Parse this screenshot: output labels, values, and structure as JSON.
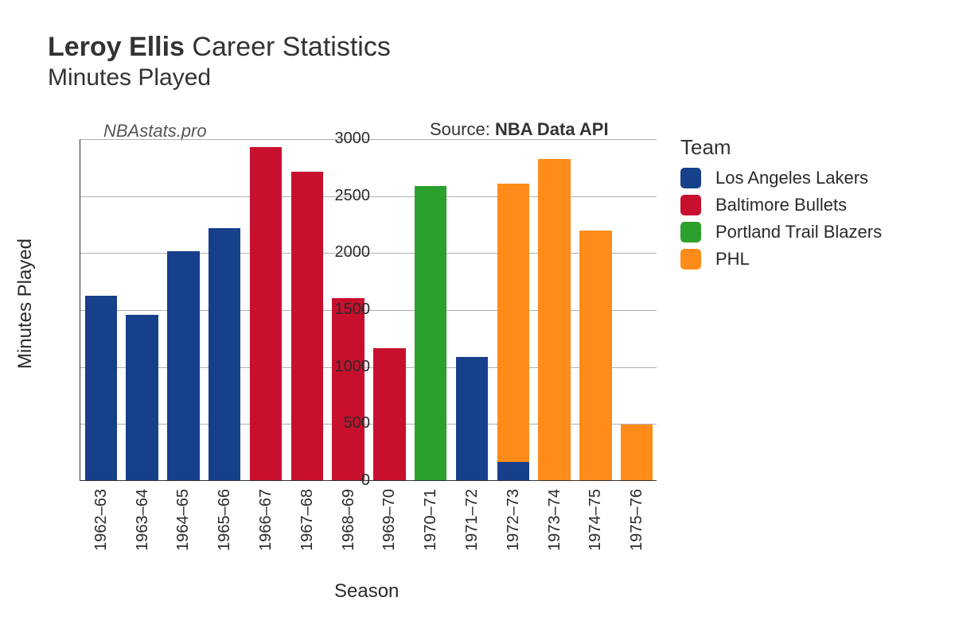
{
  "title": {
    "player": "Leroy Ellis",
    "rest": " Career Statistics",
    "subtitle": "Minutes Played"
  },
  "annotations": {
    "site": "NBAstats.pro",
    "source_prefix": "Source: ",
    "source_bold": "NBA Data API"
  },
  "axes": {
    "x_title": "Season",
    "y_title": "Minutes Played"
  },
  "chart": {
    "type": "stacked-bar",
    "ylim": [
      0,
      3000
    ],
    "ytick_step": 500,
    "yticks": [
      0,
      500,
      1000,
      1500,
      2000,
      2500,
      3000
    ],
    "categories": [
      "1962–63",
      "1963–64",
      "1964–65",
      "1965–66",
      "1966–67",
      "1967–68",
      "1968–69",
      "1969–70",
      "1970–71",
      "1971–72",
      "1972–73",
      "1973–74",
      "1974–75",
      "1975–76"
    ],
    "bar_width_ratio": 0.78,
    "background_color": "#ffffff",
    "grid_color": "#b0b0b0",
    "axis_color": "#333333",
    "label_fontsize": 20,
    "title_fontsize": 34,
    "axis_title_fontsize": 24,
    "bars": [
      {
        "season": "1962–63",
        "segments": [
          {
            "team": "Los Angeles Lakers",
            "value": 1620
          }
        ]
      },
      {
        "season": "1963–64",
        "segments": [
          {
            "team": "Los Angeles Lakers",
            "value": 1450
          }
        ]
      },
      {
        "season": "1964–65",
        "segments": [
          {
            "team": "Los Angeles Lakers",
            "value": 2010
          }
        ]
      },
      {
        "season": "1965–66",
        "segments": [
          {
            "team": "Los Angeles Lakers",
            "value": 2210
          }
        ]
      },
      {
        "season": "1966–67",
        "segments": [
          {
            "team": "Baltimore Bullets",
            "value": 2920
          }
        ]
      },
      {
        "season": "1967–68",
        "segments": [
          {
            "team": "Baltimore Bullets",
            "value": 2710
          }
        ]
      },
      {
        "season": "1968–69",
        "segments": [
          {
            "team": "Baltimore Bullets",
            "value": 1600
          }
        ]
      },
      {
        "season": "1969–70",
        "segments": [
          {
            "team": "Baltimore Bullets",
            "value": 1160
          }
        ]
      },
      {
        "season": "1970–71",
        "segments": [
          {
            "team": "Portland Trail Blazers",
            "value": 2580
          }
        ]
      },
      {
        "season": "1971–72",
        "segments": [
          {
            "team": "Los Angeles Lakers",
            "value": 1080
          }
        ]
      },
      {
        "season": "1972–73",
        "segments": [
          {
            "team": "Los Angeles Lakers",
            "value": 160
          },
          {
            "team": "PHL",
            "value": 2440
          }
        ]
      },
      {
        "season": "1973–74",
        "segments": [
          {
            "team": "PHL",
            "value": 2820
          }
        ]
      },
      {
        "season": "1974–75",
        "segments": [
          {
            "team": "PHL",
            "value": 2190
          }
        ]
      },
      {
        "season": "1975–76",
        "segments": [
          {
            "team": "PHL",
            "value": 490
          }
        ]
      }
    ]
  },
  "legend": {
    "title": "Team",
    "items": [
      {
        "label": "Los Angeles Lakers",
        "color": "#17408b"
      },
      {
        "label": "Baltimore Bullets",
        "color": "#c8102e"
      },
      {
        "label": "Portland Trail Blazers",
        "color": "#2ca02c"
      },
      {
        "label": "PHL",
        "color": "#ff8c1a"
      }
    ]
  },
  "team_colors": {
    "Los Angeles Lakers": "#17408b",
    "Baltimore Bullets": "#c8102e",
    "Portland Trail Blazers": "#2ca02c",
    "PHL": "#ff8c1a"
  }
}
